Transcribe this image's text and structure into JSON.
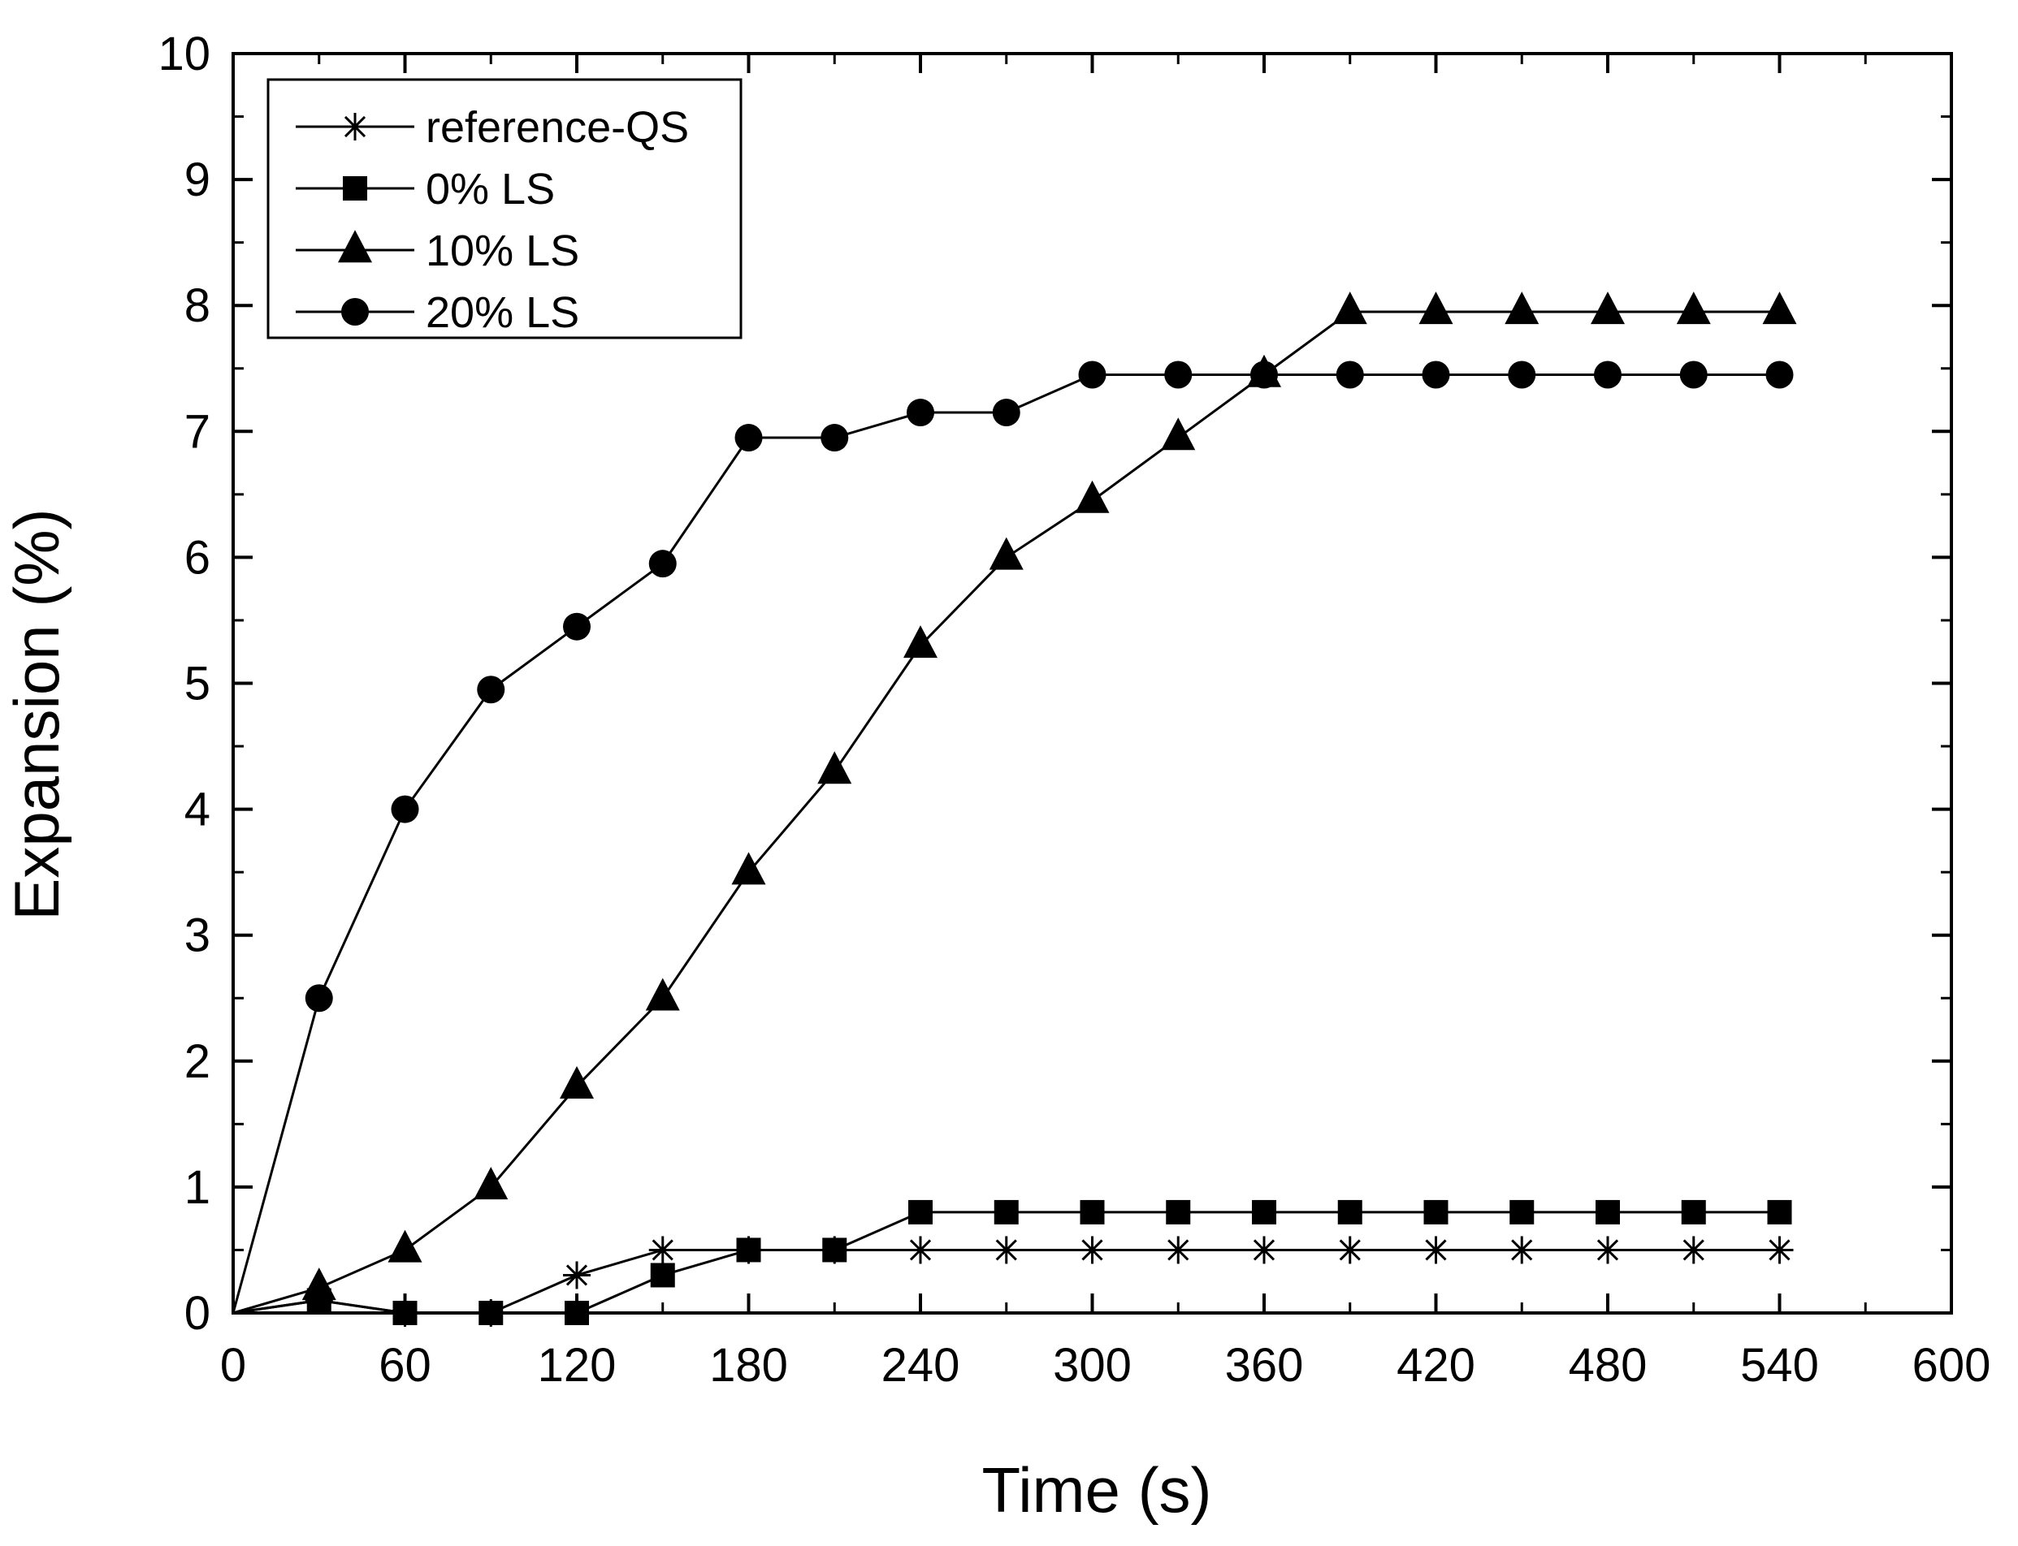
{
  "chart_data": {
    "type": "line",
    "title": "",
    "xlabel": "Time (s)",
    "ylabel": "Expansion (%)",
    "xlim": [
      0,
      600
    ],
    "ylim": [
      0,
      10
    ],
    "xticks": [
      0,
      60,
      120,
      180,
      240,
      300,
      360,
      420,
      480,
      540,
      600
    ],
    "yticks": [
      0,
      1,
      2,
      3,
      4,
      5,
      6,
      7,
      8,
      9,
      10
    ],
    "x_minor_step": 30,
    "y_minor_step": 0.5,
    "grid": false,
    "legend_position": "top-left",
    "colors": {
      "line": "#000000",
      "marker": "#000000",
      "background": "#ffffff"
    },
    "x": [
      0,
      30,
      60,
      90,
      120,
      150,
      180,
      210,
      240,
      270,
      300,
      330,
      360,
      390,
      420,
      450,
      480,
      510,
      540
    ],
    "series": [
      {
        "name": "reference-QS",
        "marker": "asterisk",
        "values": [
          0,
          0.1,
          0,
          0,
          0.3,
          0.5,
          0.5,
          0.5,
          0.5,
          0.5,
          0.5,
          0.5,
          0.5,
          0.5,
          0.5,
          0.5,
          0.5,
          0.5,
          0.5
        ]
      },
      {
        "name": "0% LS",
        "marker": "square",
        "values": [
          0,
          0.1,
          0,
          0,
          0,
          0.3,
          0.5,
          0.5,
          0.8,
          0.8,
          0.8,
          0.8,
          0.8,
          0.8,
          0.8,
          0.8,
          0.8,
          0.8,
          0.8
        ]
      },
      {
        "name": "10% LS",
        "marker": "triangle",
        "values": [
          0,
          0.2,
          0.5,
          1.0,
          1.8,
          2.5,
          3.5,
          4.3,
          5.3,
          6.0,
          6.45,
          6.95,
          7.45,
          7.95,
          7.95,
          7.95,
          7.95,
          7.95,
          7.95
        ]
      },
      {
        "name": "20% LS",
        "marker": "circle",
        "values": [
          0,
          2.5,
          4.0,
          4.95,
          5.45,
          5.95,
          6.95,
          6.95,
          7.15,
          7.15,
          7.45,
          7.45,
          7.45,
          7.45,
          7.45,
          7.45,
          7.45,
          7.45,
          7.45
        ]
      }
    ]
  }
}
